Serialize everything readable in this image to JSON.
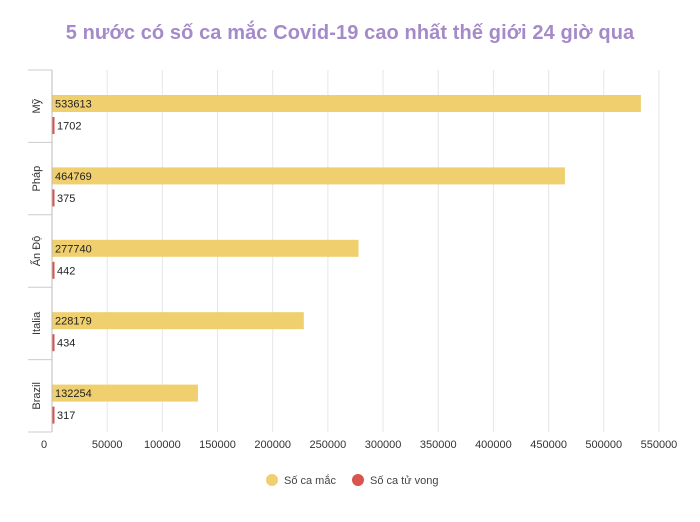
{
  "chart_data": {
    "type": "bar",
    "orientation": "horizontal",
    "title": "5 nước có số ca mắc Covid-19 cao nhất thế giới 24 giờ qua",
    "categories": [
      "Mỹ",
      "Pháp",
      "Ấn Độ",
      "Italia",
      "Brazil"
    ],
    "series": [
      {
        "name": "Số ca mắc",
        "color": "#f0cf6e",
        "values": [
          533613,
          464769,
          277740,
          228179,
          132254
        ]
      },
      {
        "name": "Số ca tử vong",
        "color": "#d9534f",
        "values": [
          1702,
          375,
          442,
          434,
          317
        ]
      }
    ],
    "xlim": [
      0,
      550000
    ],
    "xticks": [
      0,
      50000,
      100000,
      150000,
      200000,
      250000,
      300000,
      350000,
      400000,
      450000,
      500000,
      550000
    ],
    "grid": true,
    "legend_position": "bottom"
  }
}
